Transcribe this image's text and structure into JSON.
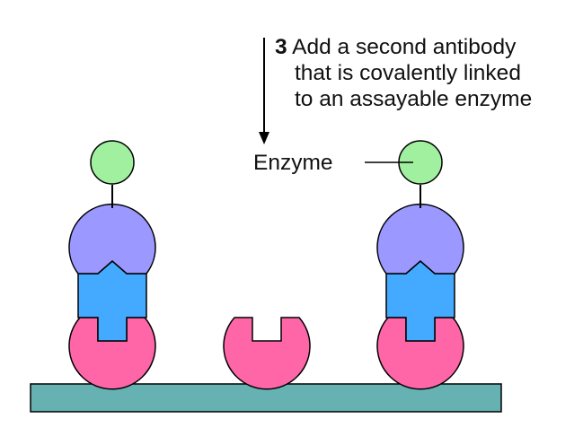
{
  "step": {
    "number": "3",
    "lines": [
      "Add a second antibody",
      "that is covalently linked",
      "to an assayable enzyme"
    ]
  },
  "label": {
    "enzyme": "Enzyme"
  },
  "colors": {
    "enzyme": "#a0f0a0",
    "second_antibody": "#9b99ff",
    "antigen": "#44aaff",
    "capture_antibody": "#ff66a8",
    "surface": "#66b2b2",
    "outline": "#000000"
  }
}
